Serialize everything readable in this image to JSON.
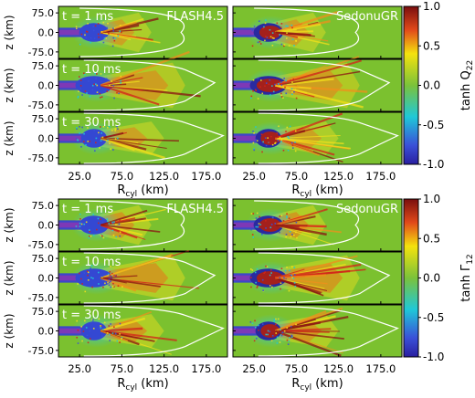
{
  "chart_data": [
    {
      "type": "heatmap",
      "quantity_label": "tanh Q",
      "quantity_sub": "22",
      "x_axis": {
        "label": "R",
        "label_sub": "cyl",
        "unit": "(km)",
        "range": [
          0,
          200
        ],
        "tick_values": [
          25,
          75,
          125,
          175
        ],
        "tick_labels": [
          "25.0",
          "75.0",
          "125.0",
          "175.0"
        ]
      },
      "y_axis": {
        "label": "z (km)",
        "range": [
          -100,
          100
        ],
        "tick_values": [
          75,
          0,
          -75
        ],
        "tick_labels": [
          "75.0",
          "0.0",
          "-75.0"
        ]
      },
      "columns": [
        "FLASH4.5",
        "SedonuGR"
      ],
      "rows": [
        "t = 1  ms",
        "t = 10  ms",
        "t = 30  ms"
      ],
      "colorbar": {
        "range": [
          -1,
          1
        ],
        "tick_values": [
          1,
          0.5,
          0,
          -0.5,
          -1
        ],
        "tick_labels": [
          "1.0",
          "0.5",
          "0.0",
          "-0.5",
          "-1.0"
        ],
        "colormap": "jet"
      }
    },
    {
      "type": "heatmap",
      "quantity_label": "tanh Γ",
      "quantity_sub": "12",
      "x_axis": {
        "label": "R",
        "label_sub": "cyl",
        "unit": "(km)",
        "range": [
          0,
          200
        ],
        "tick_values": [
          25,
          75,
          125,
          175
        ],
        "tick_labels": [
          "25.0",
          "75.0",
          "125.0",
          "175.0"
        ]
      },
      "y_axis": {
        "label": "z (km)",
        "range": [
          -100,
          100
        ],
        "tick_values": [
          75,
          0,
          -75
        ],
        "tick_labels": [
          "75.0",
          "0.0",
          "-75.0"
        ]
      },
      "columns": [
        "FLASH4.5",
        "SedonuGR"
      ],
      "rows": [
        "t = 1  ms",
        "t = 10  ms",
        "t = 30  ms"
      ],
      "colorbar": {
        "range": [
          -1,
          1
        ],
        "tick_values": [
          1,
          0.5,
          0,
          -0.5,
          -1
        ],
        "tick_labels": [
          "1.0",
          "0.5",
          "0.0",
          "-0.5",
          "-1.0"
        ],
        "colormap": "jet"
      }
    }
  ]
}
